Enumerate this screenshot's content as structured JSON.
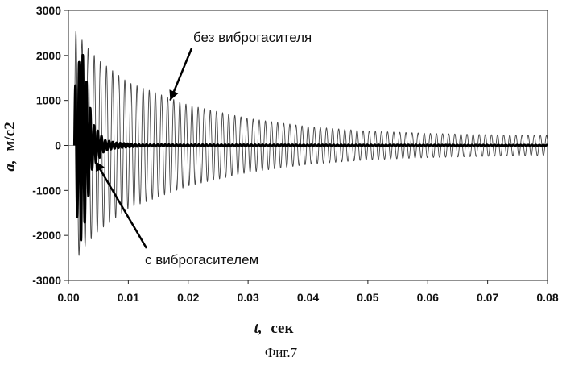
{
  "chart_data": {
    "type": "line",
    "xlabel_symbol": "t,",
    "xlabel_unit": "сек",
    "ylabel_symbol": "a,",
    "ylabel_unit": "м/с2",
    "xlim": [
      0,
      0.08
    ],
    "ylim": [
      -3000,
      3000
    ],
    "x_ticks": [
      "0.00",
      "0.01",
      "0.02",
      "0.03",
      "0.04",
      "0.05",
      "0.06",
      "0.07",
      "0.08"
    ],
    "y_ticks": [
      "3000",
      "2000",
      "1000",
      "0",
      "-1000",
      "-2000",
      "-3000"
    ],
    "grid": false,
    "series": [
      {
        "name": "без виброгасителя",
        "style": "thin",
        "envelope": [
          {
            "t": 0.001,
            "amplitude": 2600
          },
          {
            "t": 0.003,
            "amplitude": 2200
          },
          {
            "t": 0.005,
            "amplitude": 1900
          },
          {
            "t": 0.01,
            "amplitude": 1400
          },
          {
            "t": 0.02,
            "amplitude": 900
          },
          {
            "t": 0.03,
            "amplitude": 600
          },
          {
            "t": 0.04,
            "amplitude": 420
          },
          {
            "t": 0.05,
            "amplitude": 320
          },
          {
            "t": 0.06,
            "amplitude": 270
          },
          {
            "t": 0.07,
            "amplitude": 240
          },
          {
            "t": 0.08,
            "amplitude": 220
          }
        ],
        "cycles_per_ms": 0.98
      },
      {
        "name": "с виброгасителем",
        "style": "thick",
        "envelope": [
          {
            "t": 0.001,
            "amplitude": 1200
          },
          {
            "t": 0.0022,
            "amplitude": 2200
          },
          {
            "t": 0.004,
            "amplitude": 500
          },
          {
            "t": 0.006,
            "amplitude": 120
          },
          {
            "t": 0.008,
            "amplitude": 60
          },
          {
            "t": 0.012,
            "amplitude": 20
          },
          {
            "t": 0.08,
            "amplitude": 10
          }
        ],
        "cycles_per_ms": 1.6
      }
    ],
    "annotations": [
      {
        "text": "без виброгасителя",
        "points_to": {
          "t": 0.017,
          "a": 1000
        }
      },
      {
        "text": "с виброгасителем",
        "points_to": {
          "t": 0.0045,
          "a": -350
        }
      }
    ]
  },
  "caption": "Фиг.7"
}
